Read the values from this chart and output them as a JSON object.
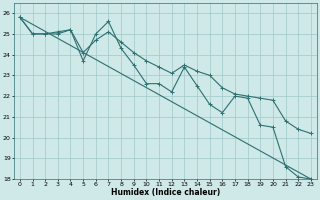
{
  "background_color": "#cfe8e8",
  "grid_color": "#a0c8c8",
  "line_color": "#2d7070",
  "xlabel": "Humidex (Indice chaleur)",
  "xlim": [
    -0.5,
    23.5
  ],
  "ylim": [
    18,
    26.5
  ],
  "yticks": [
    18,
    19,
    20,
    21,
    22,
    23,
    24,
    25,
    26
  ],
  "xticks": [
    0,
    1,
    2,
    3,
    4,
    5,
    6,
    7,
    8,
    9,
    10,
    11,
    12,
    13,
    14,
    15,
    16,
    17,
    18,
    19,
    20,
    21,
    22,
    23
  ],
  "line1_x": [
    0,
    1,
    2,
    3,
    4,
    5,
    6,
    7,
    8,
    9,
    10,
    11,
    12,
    13,
    14,
    15,
    16,
    17,
    18,
    19,
    20,
    21,
    22,
    23
  ],
  "line1_y": [
    25.8,
    25.0,
    25.0,
    25.0,
    25.2,
    23.7,
    25.0,
    25.6,
    24.3,
    23.5,
    22.6,
    22.6,
    22.2,
    23.4,
    22.5,
    21.6,
    21.2,
    22.0,
    21.9,
    20.6,
    20.5,
    18.6,
    18.1,
    18.0
  ],
  "line2_x": [
    0,
    1,
    2,
    3,
    4,
    5,
    6,
    7,
    8,
    9,
    10,
    11,
    12,
    13,
    14,
    15,
    16,
    17,
    18,
    19,
    20,
    21,
    22,
    23
  ],
  "line2_y": [
    25.8,
    25.0,
    25.0,
    25.1,
    25.2,
    24.1,
    24.7,
    25.1,
    24.6,
    24.1,
    23.7,
    23.4,
    23.1,
    23.5,
    23.2,
    23.0,
    22.4,
    22.1,
    22.0,
    21.9,
    21.8,
    20.8,
    20.4,
    20.2
  ],
  "line3_x": [
    0,
    23
  ],
  "line3_y": [
    25.8,
    18.0
  ],
  "marker": "+",
  "markersize": 3,
  "linewidth": 0.8
}
